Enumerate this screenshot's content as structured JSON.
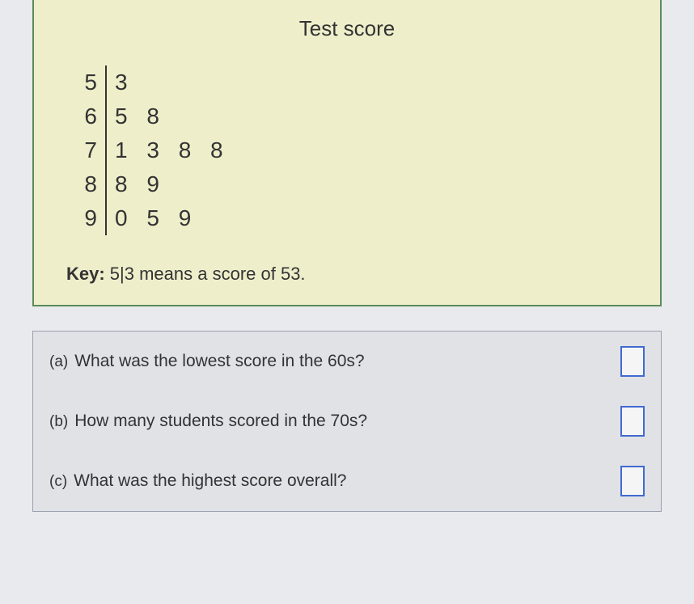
{
  "stemLeaf": {
    "title": "Test score",
    "rows": [
      {
        "stem": "5",
        "leaves": "3"
      },
      {
        "stem": "6",
        "leaves": "5 8"
      },
      {
        "stem": "7",
        "leaves": "1 3 8 8"
      },
      {
        "stem": "8",
        "leaves": "8 9"
      },
      {
        "stem": "9",
        "leaves": "0 5 9"
      }
    ],
    "keyLabel": "Key:",
    "keyText": " 5|3 means a score of 53."
  },
  "questions": [
    {
      "label": "(a)",
      "text": "What was the lowest score in the 60s?"
    },
    {
      "label": "(b)",
      "text": "How many students scored in the 70s?"
    },
    {
      "label": "(c)",
      "text": "What was the highest score overall?"
    }
  ],
  "colors": {
    "panelBg": "#eeeecb",
    "panelBorder": "#5b8a5b",
    "bodyBg": "#e8eaed",
    "questionsBg": "#e0e2e6",
    "questionsBorder": "#9aa0b0",
    "answerBoxBorder": "#4169d1"
  }
}
